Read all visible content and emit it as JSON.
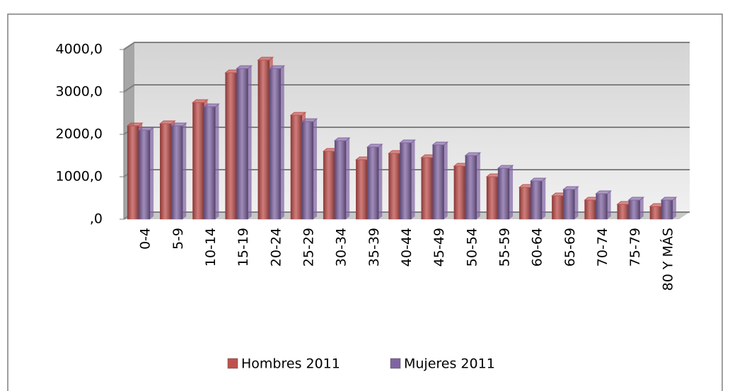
{
  "chart_data": {
    "type": "bar3d",
    "categories": [
      "0-4",
      "5-9",
      "10-14",
      "15-19",
      "20-24",
      "25-29",
      "30-34",
      "35-39",
      "40-44",
      "45-49",
      "50-54",
      "55-59",
      "60-64",
      "65-69",
      "70-74",
      "75-79",
      "80 Y MÁS"
    ],
    "series": [
      {
        "name": "Hombres 2011",
        "color": "#c0504d",
        "values": [
          2200,
          2250,
          2750,
          3450,
          3750,
          2450,
          1600,
          1400,
          1550,
          1450,
          1250,
          1000,
          750,
          550,
          450,
          350,
          300
        ]
      },
      {
        "name": "Mujeres 2011",
        "color": "#8064a2",
        "values": [
          2100,
          2200,
          2650,
          3550,
          3550,
          2300,
          1850,
          1700,
          1800,
          1750,
          1500,
          1200,
          900,
          700,
          600,
          450,
          450
        ]
      }
    ],
    "ylim": [
      0,
      4000
    ],
    "yticks": [
      {
        "value": 0,
        "label": ",0"
      },
      {
        "value": 1000,
        "label": "1000,0"
      },
      {
        "value": 2000,
        "label": "2000,0"
      },
      {
        "value": 3000,
        "label": "3000,0"
      },
      {
        "value": 4000,
        "label": "4000,0"
      }
    ],
    "grid": true,
    "legend": "bottom"
  }
}
